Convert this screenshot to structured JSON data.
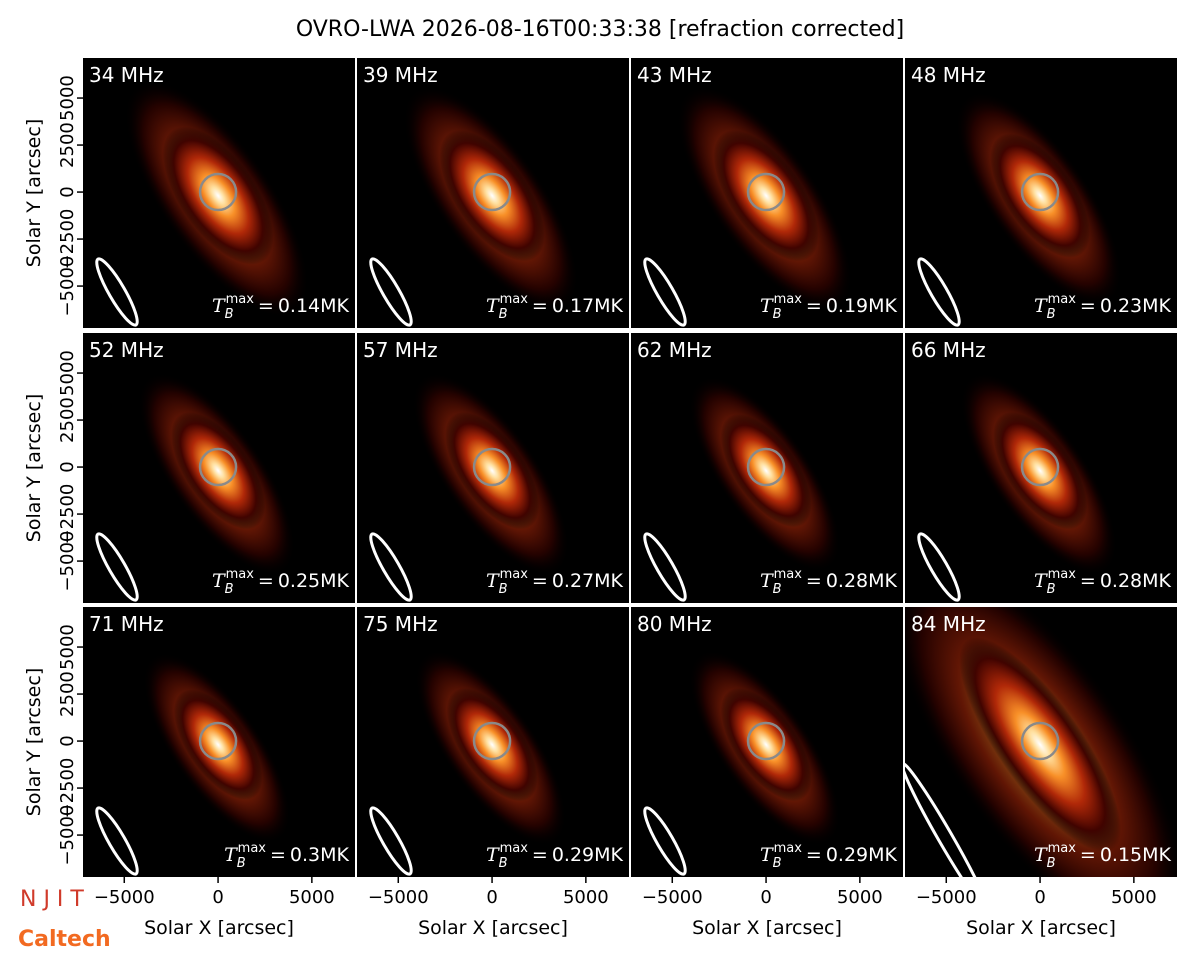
{
  "chart_data": {
    "type": "image-grid",
    "title": "OVRO-LWA 2026-08-16T00:33:38 [refraction corrected]",
    "xlabel": "Solar X [arcsec]",
    "ylabel": "Solar Y [arcsec]",
    "xlim": [
      -7200,
      7300
    ],
    "ylim": [
      -7230,
      7130
    ],
    "xticks": [
      {
        "value": -5000,
        "label": "−5000"
      },
      0,
      5000
    ],
    "yticks": [
      {
        "value": -5000,
        "label": "−5000"
      },
      {
        "value": -2500,
        "label": "−2500"
      },
      0,
      2500,
      5000
    ],
    "tb_symbol": {
      "base": "T",
      "sub": "B",
      "sup": "max",
      "eq": "="
    },
    "panels": [
      {
        "label": "34 MHz",
        "tb_max": 0.14,
        "tb_max_label": "0.14MK"
      },
      {
        "label": "39 MHz",
        "tb_max": 0.17,
        "tb_max_label": "0.17MK"
      },
      {
        "label": "43 MHz",
        "tb_max": 0.19,
        "tb_max_label": "0.19MK"
      },
      {
        "label": "48 MHz",
        "tb_max": 0.23,
        "tb_max_label": "0.23MK"
      },
      {
        "label": "52 MHz",
        "tb_max": 0.25,
        "tb_max_label": "0.25MK"
      },
      {
        "label": "57 MHz",
        "tb_max": 0.27,
        "tb_max_label": "0.27MK"
      },
      {
        "label": "62 MHz",
        "tb_max": 0.28,
        "tb_max_label": "0.28MK"
      },
      {
        "label": "66 MHz",
        "tb_max": 0.28,
        "tb_max_label": "0.28MK"
      },
      {
        "label": "71 MHz",
        "tb_max": 0.3,
        "tb_max_label": "0.3MK"
      },
      {
        "label": "75 MHz",
        "tb_max": 0.29,
        "tb_max_label": "0.29MK"
      },
      {
        "label": "80 MHz",
        "tb_max": 0.29,
        "tb_max_label": "0.29MK"
      },
      {
        "label": "84 MHz",
        "tb_max": 0.15,
        "tb_max_label": "0.15MK"
      }
    ]
  },
  "logos": [
    "N J I T",
    "Caltech"
  ]
}
